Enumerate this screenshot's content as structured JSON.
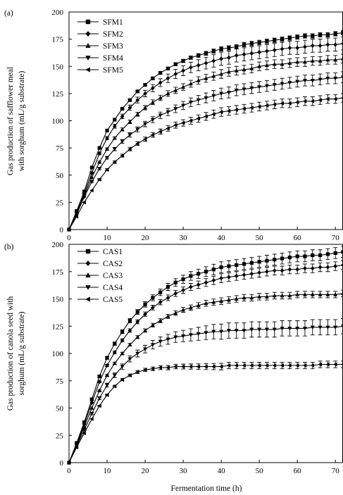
{
  "chart_data": [
    {
      "type": "line",
      "panel_label": "(a)",
      "ylabel_line1": "Gas production of safflower meal",
      "ylabel_line2": "with sorghum (mL/g substrate)",
      "xlabel": "",
      "xlim": [
        0,
        72
      ],
      "ylim": [
        0,
        200
      ],
      "xticks": [
        0,
        10,
        20,
        30,
        40,
        50,
        60,
        70
      ],
      "yticks": [
        0,
        25,
        50,
        75,
        100,
        125,
        150,
        175,
        200
      ],
      "legend_position": "top-left",
      "x": [
        0,
        2,
        4,
        6,
        8,
        10,
        12,
        14,
        16,
        18,
        20,
        22,
        24,
        26,
        28,
        30,
        32,
        34,
        36,
        38,
        40,
        42,
        44,
        46,
        48,
        50,
        52,
        54,
        56,
        58,
        60,
        62,
        64,
        66,
        68,
        70,
        72
      ],
      "series": [
        {
          "name": "SFM1",
          "marker": "square",
          "error": 2,
          "values": [
            0,
            17,
            35,
            57,
            75,
            91,
            101,
            111,
            119,
            127,
            133,
            139,
            144,
            148,
            152,
            155,
            158,
            160,
            162,
            164,
            166,
            167,
            168,
            170,
            171,
            172,
            173,
            174,
            175,
            176,
            177,
            178,
            178,
            179,
            179,
            180,
            181
          ]
        },
        {
          "name": "SFM2",
          "marker": "diamond",
          "error": 6,
          "values": [
            0,
            16,
            33,
            52,
            70,
            84,
            95,
            104,
            112,
            119,
            125,
            130,
            135,
            139,
            143,
            146,
            149,
            151,
            153,
            155,
            157,
            158,
            160,
            161,
            162,
            163,
            164,
            165,
            166,
            167,
            167,
            168,
            169,
            169,
            170,
            170,
            171
          ]
        },
        {
          "name": "SFM3",
          "marker": "triangle-up",
          "error": 4,
          "values": [
            0,
            15,
            31,
            48,
            62,
            74,
            84,
            92,
            99,
            106,
            112,
            117,
            121,
            125,
            128,
            131,
            134,
            137,
            139,
            141,
            143,
            145,
            146,
            147,
            148,
            150,
            151,
            152,
            152,
            153,
            154,
            154,
            155,
            155,
            156,
            156,
            157
          ]
        },
        {
          "name": "SFM4",
          "marker": "triangle-down",
          "error": 5,
          "values": [
            0,
            14,
            30,
            44,
            56,
            66,
            74,
            81,
            87,
            92,
            97,
            101,
            105,
            108,
            111,
            114,
            117,
            119,
            121,
            123,
            125,
            126,
            128,
            129,
            130,
            131,
            132,
            133,
            134,
            135,
            136,
            137,
            137,
            138,
            139,
            139,
            140
          ]
        },
        {
          "name": "SFM5",
          "marker": "triangle-left",
          "error": 4,
          "values": [
            0,
            12,
            25,
            36,
            46,
            55,
            62,
            68,
            74,
            79,
            83,
            87,
            90,
            93,
            96,
            98,
            100,
            102,
            104,
            106,
            108,
            109,
            110,
            111,
            112,
            113,
            114,
            115,
            116,
            116,
            117,
            118,
            118,
            119,
            120,
            120,
            121
          ]
        }
      ]
    },
    {
      "type": "line",
      "panel_label": "(b)",
      "ylabel_line1": "Gas production of canola seed with",
      "ylabel_line2": "sorghum (mL/g substrate)",
      "xlabel": "Fermentation time (h)",
      "xlim": [
        0,
        72
      ],
      "ylim": [
        0,
        200
      ],
      "xticks": [
        0,
        10,
        20,
        30,
        40,
        50,
        60,
        70
      ],
      "yticks": [
        0,
        25,
        50,
        75,
        100,
        125,
        150,
        175,
        200
      ],
      "legend_position": "top-left",
      "x": [
        0,
        2,
        4,
        6,
        8,
        10,
        12,
        14,
        16,
        18,
        20,
        22,
        24,
        26,
        28,
        30,
        32,
        34,
        36,
        38,
        40,
        42,
        44,
        46,
        48,
        50,
        52,
        54,
        56,
        58,
        60,
        62,
        64,
        66,
        68,
        70,
        72
      ],
      "series": [
        {
          "name": "CAS1",
          "marker": "square",
          "error": 5,
          "values": [
            0,
            18,
            37,
            58,
            79,
            96,
            109,
            120,
            130,
            138,
            145,
            151,
            156,
            161,
            165,
            168,
            171,
            173,
            175,
            177,
            179,
            180,
            181,
            182,
            183,
            184,
            185,
            186,
            187,
            188,
            189,
            189,
            190,
            190,
            191,
            192,
            193
          ]
        },
        {
          "name": "CAS2",
          "marker": "diamond",
          "error": 4,
          "values": [
            0,
            17,
            35,
            55,
            74,
            89,
            101,
            112,
            121,
            129,
            136,
            142,
            147,
            151,
            155,
            158,
            161,
            163,
            165,
            167,
            169,
            170,
            171,
            172,
            173,
            174,
            175,
            176,
            176,
            177,
            177,
            178,
            178,
            179,
            179,
            180,
            181
          ]
        },
        {
          "name": "CAS3",
          "marker": "triangle-up",
          "error": 3,
          "values": [
            0,
            16,
            33,
            50,
            66,
            80,
            91,
            100,
            108,
            115,
            121,
            126,
            130,
            134,
            137,
            140,
            142,
            144,
            146,
            147,
            148,
            149,
            150,
            151,
            151,
            152,
            152,
            153,
            153,
            153,
            154,
            154,
            154,
            154,
            154,
            154,
            155
          ]
        },
        {
          "name": "CAS4",
          "marker": "triangle-down",
          "error": 7,
          "values": [
            0,
            15,
            30,
            45,
            59,
            71,
            80,
            88,
            95,
            100,
            104,
            108,
            111,
            113,
            115,
            116,
            117,
            118,
            119,
            120,
            120,
            121,
            121,
            121,
            122,
            122,
            122,
            122,
            123,
            123,
            123,
            123,
            124,
            124,
            124,
            124,
            125
          ]
        },
        {
          "name": "CAS5",
          "marker": "triangle-left",
          "error": 3,
          "values": [
            0,
            14,
            27,
            40,
            52,
            62,
            70,
            76,
            80,
            83,
            85,
            86,
            87,
            87,
            88,
            88,
            88,
            88,
            88,
            88,
            88,
            89,
            89,
            89,
            89,
            89,
            89,
            89,
            89,
            89,
            89,
            89,
            89,
            90,
            90,
            90,
            90
          ]
        }
      ]
    }
  ]
}
